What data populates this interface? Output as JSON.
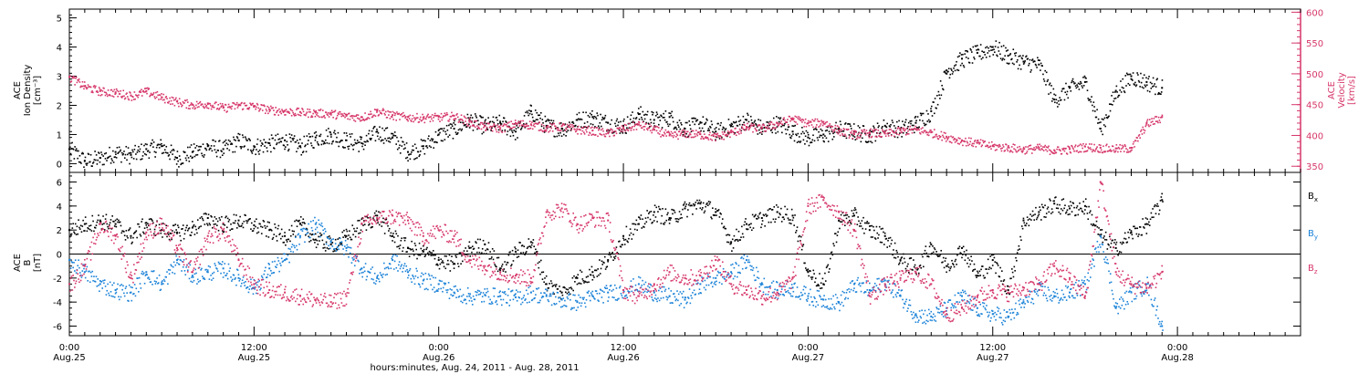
{
  "chart_data": [
    {
      "type": "scatter",
      "panel": "top",
      "ylabel_left": [
        "ACE",
        "Ion Density",
        "[cm⁻³]"
      ],
      "ylabel_right": [
        "ACE",
        "Velocity",
        "[km/s]"
      ],
      "ylim": [
        -0.3,
        5.3
      ],
      "yticks": [
        0,
        1,
        2,
        3,
        4,
        5
      ],
      "y2lim": [
        340,
        605
      ],
      "y2ticks": [
        350,
        400,
        450,
        500,
        550,
        600
      ],
      "right_axis_color": "#d6376a",
      "xlim_hours": [
        0,
        80
      ],
      "series": [
        {
          "axis": "left",
          "color": "#000000",
          "x_hours": [
            0,
            1,
            2,
            3,
            4,
            5,
            6,
            7,
            8,
            9,
            10,
            11,
            12,
            13,
            14,
            15,
            16,
            17,
            18,
            19,
            20,
            21,
            22,
            23,
            24,
            25,
            26,
            27,
            28,
            29,
            30,
            31,
            32,
            33,
            34,
            35,
            36,
            37,
            38,
            39,
            40,
            41,
            42,
            43,
            44,
            45,
            46,
            47,
            48,
            49,
            50,
            51,
            52,
            53,
            54,
            55,
            56,
            57,
            58,
            59,
            60,
            61,
            62,
            63,
            64,
            65,
            66,
            67,
            68,
            69,
            70,
            71
          ],
          "values": [
            0.5,
            0.1,
            0.2,
            0.4,
            0.3,
            0.5,
            0.6,
            0.2,
            0.4,
            0.6,
            0.5,
            0.8,
            0.6,
            0.7,
            0.8,
            0.6,
            0.9,
            1.0,
            0.8,
            0.7,
            1.1,
            0.9,
            0.4,
            0.6,
            1.0,
            1.2,
            1.5,
            1.3,
            1.4,
            1.1,
            1.8,
            1.3,
            1.2,
            1.5,
            1.6,
            1.4,
            1.3,
            1.7,
            1.5,
            1.6,
            1.2,
            1.4,
            1.1,
            1.3,
            1.5,
            1.2,
            1.4,
            1.1,
            0.9,
            1.0,
            1.2,
            1.1,
            1.0,
            1.3,
            1.2,
            1.4,
            1.8,
            3.2,
            3.6,
            3.8,
            4.0,
            3.7,
            3.5,
            3.4,
            2.2,
            2.6,
            2.8,
            1.2,
            2.5,
            3.0,
            2.8,
            2.6
          ]
        },
        {
          "axis": "right",
          "color": "#d6376a",
          "x_hours": [
            0,
            1,
            2,
            3,
            4,
            5,
            6,
            7,
            8,
            9,
            10,
            11,
            12,
            13,
            14,
            15,
            16,
            17,
            18,
            19,
            20,
            21,
            22,
            23,
            24,
            25,
            26,
            27,
            28,
            29,
            30,
            31,
            32,
            33,
            34,
            35,
            36,
            37,
            38,
            39,
            40,
            41,
            42,
            43,
            44,
            45,
            46,
            47,
            48,
            49,
            50,
            51,
            52,
            53,
            54,
            55,
            56,
            57,
            58,
            59,
            60,
            61,
            62,
            63,
            64,
            65,
            66,
            67,
            68,
            69,
            70,
            71
          ],
          "values": [
            495,
            480,
            472,
            470,
            465,
            472,
            462,
            455,
            450,
            452,
            445,
            450,
            448,
            442,
            440,
            438,
            437,
            436,
            432,
            430,
            440,
            433,
            430,
            429,
            430,
            432,
            422,
            415,
            412,
            420,
            418,
            413,
            415,
            410,
            408,
            404,
            412,
            418,
            410,
            400,
            404,
            402,
            398,
            405,
            414,
            412,
            420,
            428,
            420,
            422,
            408,
            402,
            405,
            403,
            408,
            410,
            405,
            398,
            392,
            388,
            383,
            381,
            378,
            380,
            376,
            378,
            382,
            380,
            379,
            380,
            420,
            430
          ]
        }
      ]
    },
    {
      "type": "scatter",
      "panel": "bottom",
      "ylabel_left": [
        "ACE",
        "B",
        "[nT]"
      ],
      "ylim": [
        -6.8,
        6.8
      ],
      "yticks": [
        -6,
        -4,
        -2,
        0,
        2,
        4,
        6
      ],
      "zero_line": true,
      "xlim_hours": [
        0,
        80
      ],
      "legend_position": "right",
      "series": [
        {
          "name": "Bx",
          "legend_main": "B",
          "legend_sub": "x",
          "color": "#000000",
          "x_hours": [
            0,
            1,
            2,
            3,
            4,
            5,
            6,
            7,
            8,
            9,
            10,
            11,
            12,
            13,
            14,
            15,
            16,
            17,
            18,
            19,
            20,
            21,
            22,
            23,
            24,
            25,
            26,
            27,
            28,
            29,
            30,
            31,
            32,
            33,
            34,
            35,
            36,
            37,
            38,
            39,
            40,
            41,
            42,
            43,
            44,
            45,
            46,
            47,
            48,
            49,
            50,
            51,
            52,
            53,
            54,
            55,
            56,
            57,
            58,
            59,
            60,
            61,
            62,
            63,
            64,
            65,
            66,
            67,
            68,
            69,
            70,
            71
          ],
          "values": [
            2.0,
            2.5,
            2.8,
            2.5,
            1.5,
            2.6,
            2.0,
            1.8,
            2.2,
            3.0,
            2.5,
            2.8,
            2.4,
            2.0,
            1.5,
            2.5,
            1.2,
            0.8,
            1.5,
            2.5,
            3.2,
            1.5,
            0.5,
            0.2,
            -0.5,
            -0.8,
            0.5,
            0.8,
            -1.2,
            0.2,
            1.0,
            -2.5,
            -3.2,
            -2.0,
            -1.5,
            -0.5,
            1.5,
            2.5,
            3.5,
            3.0,
            3.8,
            4.2,
            3.5,
            1.0,
            2.5,
            3.0,
            3.5,
            3.2,
            -1.5,
            -2.5,
            2.8,
            3.2,
            2.0,
            1.5,
            -0.5,
            -1.2,
            0.8,
            -1.0,
            0.5,
            -1.8,
            -0.5,
            -3.0,
            2.8,
            3.5,
            4.2,
            3.8,
            4.0,
            1.5,
            0.5,
            1.8,
            2.5,
            4.5
          ]
        },
        {
          "name": "By",
          "legend_main": "B",
          "legend_sub": "y",
          "color": "#1a82d8",
          "x_hours": [
            0,
            1,
            2,
            3,
            4,
            5,
            6,
            7,
            8,
            9,
            10,
            11,
            12,
            13,
            14,
            15,
            16,
            17,
            18,
            19,
            20,
            21,
            22,
            23,
            24,
            25,
            26,
            27,
            28,
            29,
            30,
            31,
            32,
            33,
            34,
            35,
            36,
            37,
            38,
            39,
            40,
            41,
            42,
            43,
            44,
            45,
            46,
            47,
            48,
            49,
            50,
            51,
            52,
            53,
            54,
            55,
            56,
            57,
            58,
            59,
            60,
            61,
            62,
            63,
            64,
            65,
            66,
            67,
            68,
            69,
            70,
            71
          ],
          "values": [
            -0.5,
            -1.5,
            -2.5,
            -3.0,
            -3.2,
            -1.5,
            -2.5,
            -0.5,
            -1.8,
            -1.5,
            -1.2,
            -2.0,
            -2.8,
            -1.2,
            -0.5,
            1.5,
            2.5,
            1.0,
            0.5,
            -1.2,
            -2.0,
            -0.5,
            -1.5,
            -2.2,
            -2.5,
            -3.2,
            -3.5,
            -3.4,
            -3.5,
            -3.6,
            -3.2,
            -3.5,
            -3.8,
            -4.0,
            -3.5,
            -3.2,
            -3.0,
            -2.5,
            -3.2,
            -3.5,
            -3.8,
            -2.5,
            -2.0,
            -1.5,
            -0.5,
            -2.5,
            -3.0,
            -2.8,
            -3.5,
            -3.8,
            -4.0,
            -2.5,
            -3.0,
            -2.2,
            -3.5,
            -5.0,
            -5.2,
            -4.5,
            -3.5,
            -4.5,
            -5.0,
            -5.2,
            -4.0,
            -3.0,
            -3.5,
            -3.2,
            -2.5,
            1.5,
            -4.5,
            -3.2,
            -2.5,
            -6.0
          ]
        },
        {
          "name": "Bz",
          "legend_main": "B",
          "legend_sub": "z",
          "color": "#d6376a",
          "x_hours": [
            0,
            1,
            2,
            3,
            4,
            5,
            6,
            7,
            8,
            9,
            10,
            11,
            12,
            13,
            14,
            15,
            16,
            17,
            18,
            19,
            20,
            21,
            22,
            23,
            24,
            25,
            26,
            27,
            28,
            29,
            30,
            31,
            32,
            33,
            34,
            35,
            36,
            37,
            38,
            39,
            40,
            41,
            42,
            43,
            44,
            45,
            46,
            47,
            48,
            49,
            50,
            51,
            52,
            53,
            54,
            55,
            56,
            57,
            58,
            59,
            60,
            61,
            62,
            63,
            64,
            65,
            66,
            67,
            68,
            69,
            70,
            71
          ],
          "values": [
            -2.5,
            -1.0,
            2.5,
            1.5,
            -2.0,
            1.8,
            2.5,
            0.5,
            -1.5,
            1.5,
            2.0,
            -0.5,
            -2.5,
            -3.0,
            -3.2,
            -3.5,
            -3.8,
            -4.0,
            -3.5,
            2.5,
            3.0,
            3.2,
            2.8,
            1.5,
            2.0,
            1.5,
            -0.5,
            -1.0,
            -1.5,
            -1.8,
            -2.0,
            3.5,
            3.8,
            2.5,
            3.0,
            2.8,
            -3.0,
            -3.5,
            -2.5,
            -1.5,
            -2.0,
            -1.8,
            -0.5,
            -2.5,
            -3.0,
            -3.5,
            -3.2,
            -2.0,
            4.0,
            4.5,
            3.5,
            2.0,
            -3.5,
            -2.5,
            -2.0,
            -1.5,
            -2.5,
            -5.0,
            -4.5,
            -3.5,
            -3.0,
            -3.2,
            -2.8,
            -2.5,
            -1.0,
            -2.0,
            -3.5,
            6.0,
            -1.5,
            -2.5,
            -2.8,
            -1.5
          ]
        }
      ]
    }
  ],
  "x_axis": {
    "tick_labels": [
      {
        "hours": 0,
        "time": "0:00",
        "date": "Aug.25"
      },
      {
        "hours": 12,
        "time": "12:00",
        "date": "Aug.25"
      },
      {
        "hours": 24,
        "time": "0:00",
        "date": "Aug.26"
      },
      {
        "hours": 36,
        "time": "12:00",
        "date": "Aug.26"
      },
      {
        "hours": 48,
        "time": "0:00",
        "date": "Aug.27"
      },
      {
        "hours": 60,
        "time": "12:00",
        "date": "Aug.27"
      },
      {
        "hours": 72,
        "time": "0:00",
        "date": "Aug.28"
      }
    ],
    "minor_tick_step_hours": 1,
    "xlabel": "hours:minutes, Aug. 24, 2011 - Aug. 28, 2011"
  }
}
